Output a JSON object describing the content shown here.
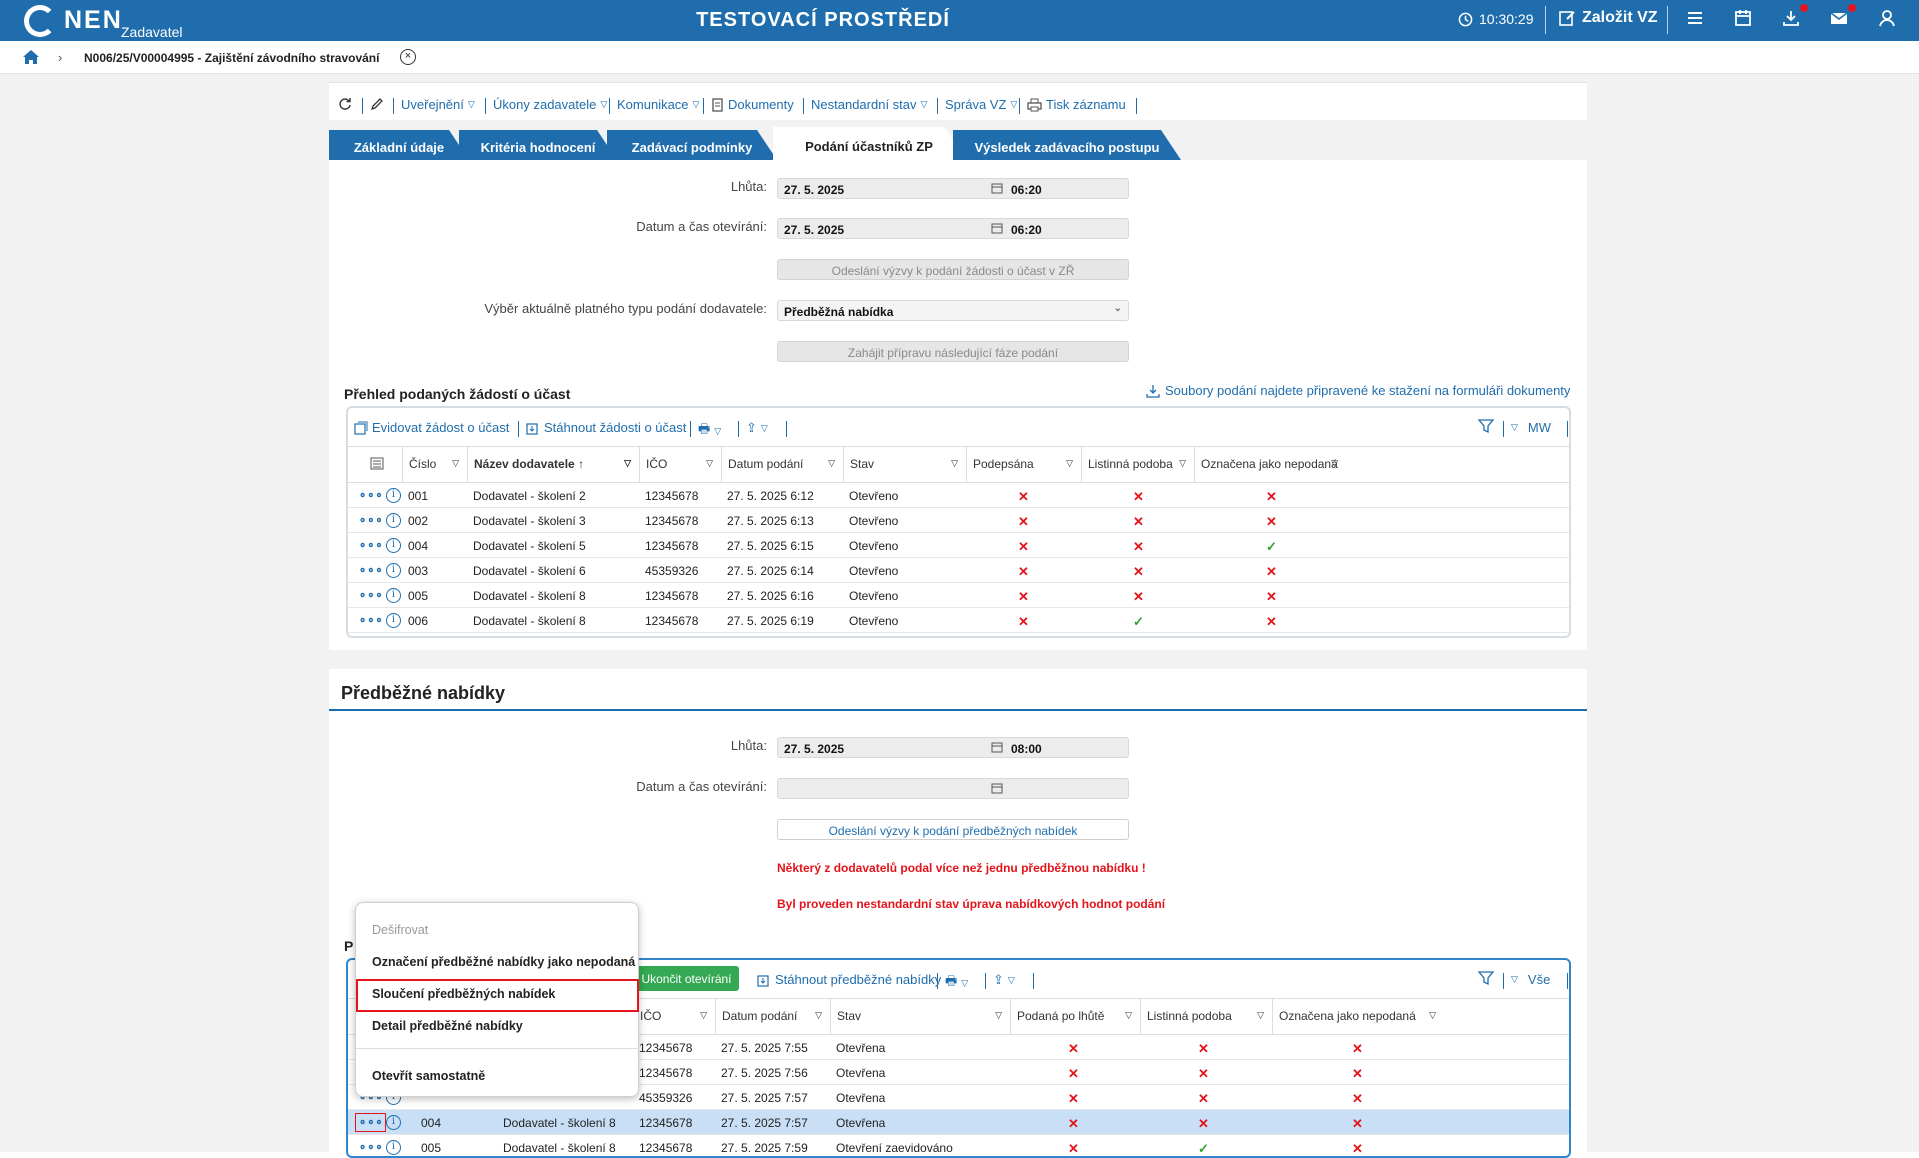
{
  "topbar": {
    "logo_text": "NEN",
    "logo_sub": "Zadavatel",
    "title": "TESTOVACÍ PROSTŘEDÍ",
    "clock": "10:30:29",
    "create_label": "Založit VZ",
    "icons": [
      "clock-icon",
      "edit-icon",
      "menu-icon",
      "calendar-icon",
      "download-icon",
      "mail-icon",
      "user-icon"
    ]
  },
  "breadcrumb": {
    "text": "N006/25/V00004995 - Zajištění závodního stravování"
  },
  "toolbar": {
    "items": [
      "Uveřejnění",
      "Úkony zadavatele",
      "Komunikace",
      "Dokumenty",
      "Nestandardní stav",
      "Správa VZ",
      "Tisk záznamu"
    ]
  },
  "tabs": [
    "Základní údaje",
    "Kritéria hodnocení",
    "Zadávací podmínky",
    "Podání účastníků ZP",
    "Výsledek zadávacího postupu"
  ],
  "section1": {
    "lhuta_label": "Lhůta:",
    "lhuta_date": "27. 5. 2025",
    "lhuta_time": "06:20",
    "open_label": "Datum a čas otevírání:",
    "open_date": "27. 5. 2025",
    "open_time": "06:20",
    "send_button": "Odeslání výzvy k podání žádosti o účast v ZŘ",
    "type_label": "Výběr aktuálně platného typu podání dodavatele:",
    "type_value": "Předběžná nabídka",
    "start_button": "Zahájit přípravu následující fáze podání",
    "grid_title": "Přehled podaných žádostí o účast",
    "download_link": "Soubory podání najdete připravené ke stažení na formuláři dokumenty",
    "grid_tools": [
      "Evidovat žádost o účast",
      "Stáhnout žádosti o účast"
    ],
    "filter_label": "MW",
    "columns": [
      "Číslo",
      "Název dodavatele",
      "IČO",
      "Datum podání",
      "Stav",
      "Podepsána",
      "Listinná podoba",
      "Označena jako nepodaná"
    ],
    "rows": [
      {
        "cislo": "001",
        "nazev": "Dodavatel - školení 2",
        "ico": "12345678",
        "datum": "27. 5. 2025 6:12",
        "stav": "Otevřeno",
        "podepsana": "✕",
        "listinna": "✕",
        "nepodana": "✕"
      },
      {
        "cislo": "002",
        "nazev": "Dodavatel - školení 3",
        "ico": "12345678",
        "datum": "27. 5. 2025 6:13",
        "stav": "Otevřeno",
        "podepsana": "✕",
        "listinna": "✕",
        "nepodana": "✕"
      },
      {
        "cislo": "004",
        "nazev": "Dodavatel - školení 5",
        "ico": "12345678",
        "datum": "27. 5. 2025 6:15",
        "stav": "Otevřeno",
        "podepsana": "✕",
        "listinna": "✕",
        "nepodana": "✓"
      },
      {
        "cislo": "003",
        "nazev": "Dodavatel - školení 6",
        "ico": "45359326",
        "datum": "27. 5. 2025 6:14",
        "stav": "Otevřeno",
        "podepsana": "✕",
        "listinna": "✕",
        "nepodana": "✕"
      },
      {
        "cislo": "005",
        "nazev": "Dodavatel - školení 8",
        "ico": "12345678",
        "datum": "27. 5. 2025 6:16",
        "stav": "Otevřeno",
        "podepsana": "✕",
        "listinna": "✕",
        "nepodana": "✕"
      },
      {
        "cislo": "006",
        "nazev": "Dodavatel - školení 8",
        "ico": "12345678",
        "datum": "27. 5. 2025 6:19",
        "stav": "Otevřeno",
        "podepsana": "✕",
        "listinna": "✓",
        "nepodana": "✕"
      }
    ]
  },
  "section2": {
    "title": "Předběžné nabídky",
    "lhuta_label": "Lhůta:",
    "lhuta_date": "27. 5. 2025",
    "lhuta_time": "08:00",
    "open_label": "Datum a čas otevírání:",
    "send_button": "Odeslání výzvy k podání předběžných nabídek",
    "warning1": "Některý z dodavatelů podal více než jednu předběžnou nabídku !",
    "warning2": "Byl proveden nestandardní stav úprava nabídkových hodnot podání",
    "grid_title_visible": "P",
    "btn_end": "Ukončit otevírání",
    "btn_download": "Stáhnout předběžné nabídky",
    "filter_label": "Vše",
    "columns": [
      "IČO",
      "Datum podání",
      "Stav",
      "Podaná po lhůtě",
      "Listinná podoba",
      "Označena jako nepodaná"
    ],
    "rows": [
      {
        "cislo": "",
        "nazev": "",
        "ico": "12345678",
        "datum": "27. 5. 2025 7:55",
        "stav": "Otevřena",
        "polhute": "✕",
        "listinna": "✕",
        "nepodana": "✕"
      },
      {
        "cislo": "",
        "nazev": "",
        "ico": "12345678",
        "datum": "27. 5. 2025 7:56",
        "stav": "Otevřena",
        "polhute": "✕",
        "listinna": "✕",
        "nepodana": "✕"
      },
      {
        "cislo": "",
        "nazev": "",
        "ico": "45359326",
        "datum": "27. 5. 2025 7:57",
        "stav": "Otevřena",
        "polhute": "✕",
        "listinna": "✕",
        "nepodana": "✕"
      },
      {
        "cislo": "004",
        "nazev": "Dodavatel - školení 8",
        "ico": "12345678",
        "datum": "27. 5. 2025 7:57",
        "stav": "Otevřena",
        "polhute": "✕",
        "listinna": "✕",
        "nepodana": "✕"
      },
      {
        "cislo": "005",
        "nazev": "Dodavatel - školení 8",
        "ico": "12345678",
        "datum": "27. 5. 2025 7:59",
        "stav": "Otevření zaevidováno",
        "polhute": "✕",
        "listinna": "✓",
        "nepodana": "✕"
      }
    ]
  },
  "context_menu": {
    "items": [
      "Dešifrovat",
      "Označení předběžné nabídky jako nepodaná",
      "Sloučení předběžných nabídek",
      "Detail předběžné nabídky",
      "Otevřít samostatně"
    ]
  },
  "colors": {
    "brand": "#1f6dad",
    "error": "#e3141b",
    "ok": "#33a033",
    "accent_green": "#34a853"
  }
}
